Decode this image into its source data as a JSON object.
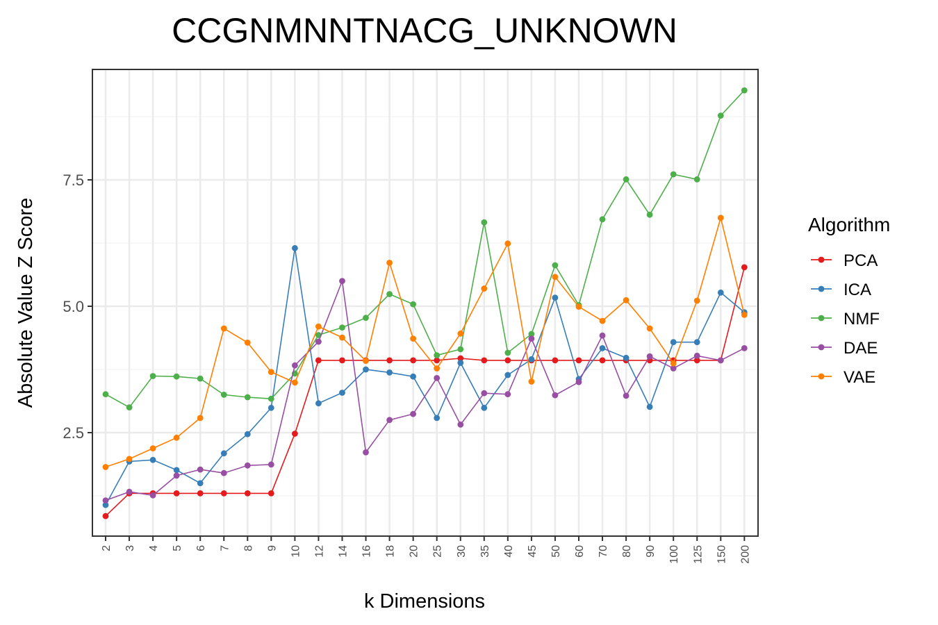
{
  "chart_data": {
    "type": "line",
    "title": "CCGNMNNTNACG_UNKNOWN",
    "xlabel": "k Dimensions",
    "ylabel": "Absolute Value Z Score",
    "categories": [
      "2",
      "3",
      "4",
      "5",
      "6",
      "7",
      "8",
      "9",
      "10",
      "12",
      "14",
      "16",
      "18",
      "20",
      "25",
      "30",
      "35",
      "40",
      "45",
      "50",
      "60",
      "70",
      "80",
      "90",
      "100",
      "125",
      "150",
      "200"
    ],
    "yticks": [
      2.5,
      5.0,
      7.5
    ],
    "ytick_labels": [
      "2.5",
      "5.0",
      "7.5"
    ],
    "ylim": [
      0.4,
      9.6
    ],
    "grid": true,
    "legend": {
      "title": "Algorithm",
      "position": "right"
    },
    "series": [
      {
        "name": "PCA",
        "color": "#e41a1c",
        "values": [
          0.85,
          1.3,
          1.3,
          1.3,
          1.3,
          1.3,
          1.3,
          1.3,
          2.48,
          3.93,
          3.93,
          3.93,
          3.93,
          3.93,
          3.93,
          3.97,
          3.93,
          3.93,
          3.93,
          3.93,
          3.93,
          3.93,
          3.93,
          3.93,
          3.93,
          3.93,
          3.93,
          5.77
        ]
      },
      {
        "name": "ICA",
        "color": "#377eb8",
        "values": [
          1.07,
          1.93,
          1.96,
          1.76,
          1.5,
          2.09,
          2.47,
          2.99,
          6.15,
          3.08,
          3.29,
          3.75,
          3.69,
          3.61,
          2.79,
          3.88,
          2.99,
          3.64,
          3.95,
          5.17,
          3.56,
          4.17,
          3.98,
          3.01,
          4.29,
          4.29,
          5.27,
          4.88
        ]
      },
      {
        "name": "NMF",
        "color": "#4daf4a",
        "values": [
          3.26,
          3.0,
          3.62,
          3.61,
          3.57,
          3.25,
          3.2,
          3.17,
          3.67,
          4.43,
          4.58,
          4.77,
          5.24,
          5.04,
          4.03,
          4.15,
          6.66,
          4.08,
          4.45,
          5.81,
          5.02,
          6.72,
          7.51,
          6.81,
          7.61,
          7.51,
          8.77,
          9.27
        ]
      },
      {
        "name": "DAE",
        "color": "#984ea3",
        "values": [
          1.16,
          1.33,
          1.26,
          1.65,
          1.77,
          1.7,
          1.85,
          1.87,
          3.83,
          4.3,
          5.5,
          2.11,
          2.75,
          2.87,
          3.58,
          2.66,
          3.28,
          3.26,
          4.36,
          3.24,
          3.5,
          4.42,
          3.23,
          4.01,
          3.77,
          4.02,
          3.93,
          4.17
        ]
      },
      {
        "name": "VAE",
        "color": "#ff7f00",
        "values": [
          1.82,
          1.98,
          2.19,
          2.4,
          2.79,
          4.56,
          4.28,
          3.7,
          3.49,
          4.6,
          4.38,
          3.92,
          5.86,
          4.36,
          3.77,
          4.46,
          5.35,
          6.24,
          3.51,
          5.58,
          4.99,
          4.71,
          5.12,
          4.56,
          3.87,
          5.11,
          6.75,
          4.83
        ]
      }
    ]
  }
}
